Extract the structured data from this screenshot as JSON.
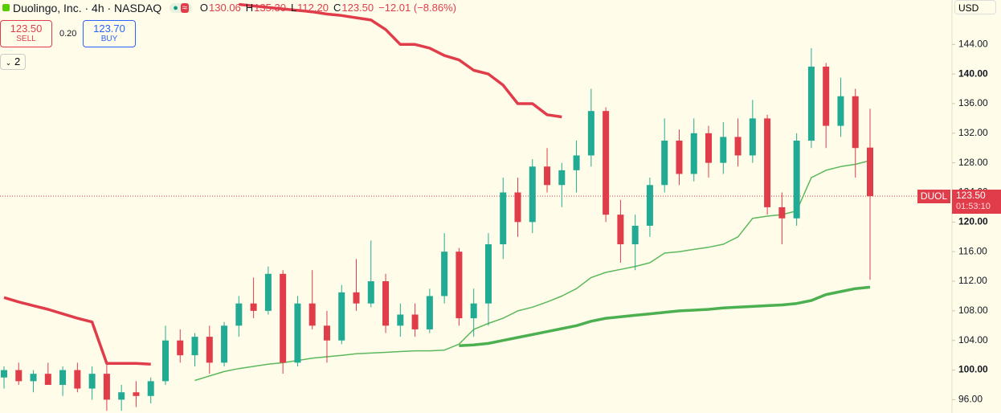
{
  "header": {
    "symbol": "Duolingo, Inc. · 4h · NASDAQ",
    "ohlc": [
      {
        "key": "O",
        "value": "130.06"
      },
      {
        "key": "H",
        "value": "135.30"
      },
      {
        "key": "L",
        "value": "112.20"
      },
      {
        "key": "C",
        "value": "123.50"
      }
    ],
    "change": "−12.01 (−8.86%)"
  },
  "trade": {
    "sell_price": "123.50",
    "sell": "SELL",
    "spread": "0.20",
    "buy_price": "123.70",
    "buy": "BUY"
  },
  "indicator_count": "2",
  "currency": "USD",
  "chart_data": {
    "type": "candlestick",
    "ylim": [
      94.2,
      150.0
    ],
    "yticks": [
      {
        "value": 96,
        "label": "96.00"
      },
      {
        "value": 100,
        "label": "100.00"
      },
      {
        "value": 104,
        "label": "104.00"
      },
      {
        "value": 108,
        "label": "108.00"
      },
      {
        "value": 112,
        "label": "112.00"
      },
      {
        "value": 116,
        "label": "116.00"
      },
      {
        "value": 120,
        "label": "120.00"
      },
      {
        "value": 124,
        "label": "124.00"
      },
      {
        "value": 128,
        "label": "128.00"
      },
      {
        "value": 132,
        "label": "132.00"
      },
      {
        "value": 136,
        "label": "136.00"
      },
      {
        "value": 140,
        "label": "140.00"
      },
      {
        "value": 144,
        "label": "144.00"
      }
    ],
    "grid": false,
    "up_color": "#22ab94",
    "down_color": "#e03c4a",
    "candles": [
      [
        99,
        100.5,
        97.5,
        100
      ],
      [
        100,
        101,
        98,
        98.5
      ],
      [
        98.5,
        100,
        97,
        99.5
      ],
      [
        99.5,
        101,
        98,
        98
      ],
      [
        98,
        100.5,
        96.5,
        100
      ],
      [
        100,
        101,
        97,
        97.5
      ],
      [
        97.5,
        100.5,
        96,
        99.5
      ],
      [
        99.5,
        101,
        94.5,
        96
      ],
      [
        96,
        98,
        94.5,
        97
      ],
      [
        97,
        98.5,
        95,
        96.5
      ],
      [
        96.5,
        99,
        95.5,
        98.5
      ],
      [
        98.5,
        106,
        98,
        104
      ],
      [
        104,
        105.5,
        101,
        102
      ],
      [
        102,
        105,
        100.5,
        104.5
      ],
      [
        104.5,
        106,
        99.5,
        101
      ],
      [
        101,
        106.5,
        100.5,
        106
      ],
      [
        106,
        110,
        104.5,
        109
      ],
      [
        109,
        112.5,
        107,
        108
      ],
      [
        108,
        114,
        107.5,
        113
      ],
      [
        113,
        113.5,
        99.5,
        101
      ],
      [
        101,
        110,
        100.5,
        109
      ],
      [
        109,
        113.5,
        105.5,
        106
      ],
      [
        106,
        108,
        101,
        104
      ],
      [
        104,
        111.5,
        103.5,
        110.5
      ],
      [
        110.5,
        115,
        108,
        109
      ],
      [
        109,
        117.5,
        108.5,
        112
      ],
      [
        112,
        113,
        105,
        106
      ],
      [
        106,
        109,
        104.5,
        107.5
      ],
      [
        107.5,
        109,
        104.5,
        105.5
      ],
      [
        105.5,
        111,
        105,
        110
      ],
      [
        110,
        118.5,
        109,
        116
      ],
      [
        116,
        116.5,
        106,
        107
      ],
      [
        107,
        111,
        104.5,
        109
      ],
      [
        109,
        118.5,
        106,
        117
      ],
      [
        117,
        126,
        115,
        124
      ],
      [
        124,
        126,
        118,
        120
      ],
      [
        120,
        128.5,
        118.5,
        127.5
      ],
      [
        127.5,
        130,
        124,
        125
      ],
      [
        125,
        128,
        122,
        127
      ],
      [
        127,
        131,
        124,
        129
      ],
      [
        129,
        138,
        127.5,
        135
      ],
      [
        135,
        135.5,
        120,
        121
      ],
      [
        121,
        123,
        114.5,
        117
      ],
      [
        117,
        121,
        113.5,
        119.5
      ],
      [
        119.5,
        126,
        118,
        125
      ],
      [
        125,
        134,
        124,
        131
      ],
      [
        131,
        132.5,
        125,
        126.5
      ],
      [
        126.5,
        134,
        125.5,
        132
      ],
      [
        132,
        133,
        126,
        128
      ],
      [
        128,
        133.5,
        126.5,
        131.5
      ],
      [
        131.5,
        134,
        127.5,
        129
      ],
      [
        129,
        136.5,
        128,
        134
      ],
      [
        134,
        134.5,
        121,
        122
      ],
      [
        122,
        124,
        117,
        120.5
      ],
      [
        120.5,
        132,
        119.5,
        131
      ],
      [
        131,
        143.5,
        130,
        141
      ],
      [
        141,
        141.5,
        130,
        133
      ],
      [
        133,
        139.5,
        131.5,
        137
      ],
      [
        137,
        138,
        126,
        130
      ],
      [
        130.06,
        135.3,
        112.2,
        123.5
      ]
    ],
    "lines": [
      {
        "color": "#e03c4a",
        "width": 3.5,
        "values": [
          109.8,
          109.2,
          108.7,
          108.2,
          107.6,
          107,
          106.5,
          100.9,
          100.9,
          100.9,
          100.8,
          null,
          null,
          null,
          null,
          null,
          149.4,
          149.2,
          149,
          148.8,
          148.6,
          148.4,
          148.1,
          147.9,
          147.6,
          147.3,
          146,
          144,
          144,
          143.5,
          142.5,
          141.9,
          140.5,
          140,
          138.5,
          136,
          136,
          134.5,
          134.2,
          null,
          null,
          null,
          null,
          null,
          null,
          null,
          null,
          null,
          null,
          null,
          null,
          null,
          null,
          null,
          null,
          null,
          null,
          null,
          null,
          null
        ]
      },
      {
        "color": "#4caf50",
        "width": 3.5,
        "values": [
          null,
          null,
          null,
          null,
          null,
          null,
          null,
          null,
          null,
          null,
          null,
          null,
          null,
          null,
          null,
          null,
          null,
          null,
          null,
          null,
          null,
          null,
          null,
          null,
          null,
          null,
          null,
          null,
          null,
          null,
          null,
          103.3,
          103.4,
          103.6,
          104,
          104.4,
          104.8,
          105.2,
          105.6,
          106,
          106.6,
          107,
          107.2,
          107.4,
          107.6,
          107.8,
          108,
          108.1,
          108.2,
          108.4,
          108.5,
          108.6,
          108.7,
          108.8,
          109,
          109.4,
          110.2,
          110.6,
          111,
          111.2
        ]
      },
      {
        "color": "#5cb85c",
        "width": 1.5,
        "values": [
          null,
          null,
          null,
          null,
          null,
          null,
          null,
          null,
          null,
          null,
          null,
          null,
          null,
          98.6,
          99.2,
          99.8,
          100.2,
          100.5,
          100.8,
          101,
          101.3,
          101.6,
          101.8,
          102,
          102.2,
          102.3,
          102.4,
          102.5,
          102.6,
          102.6,
          102.7,
          103.5,
          105.5,
          106.3,
          107,
          108,
          108.5,
          109.2,
          110,
          111,
          112.5,
          113.2,
          113.6,
          114,
          114.5,
          115.8,
          116,
          116.3,
          116.6,
          117,
          118,
          120.5,
          120.8,
          121,
          121.5,
          126,
          127,
          127.5,
          127.8,
          128.3
        ]
      }
    ],
    "last_price": {
      "value": 123.5,
      "label": "123.50"
    },
    "last_symbol": "DUOL",
    "countdown": "01:53:10"
  }
}
